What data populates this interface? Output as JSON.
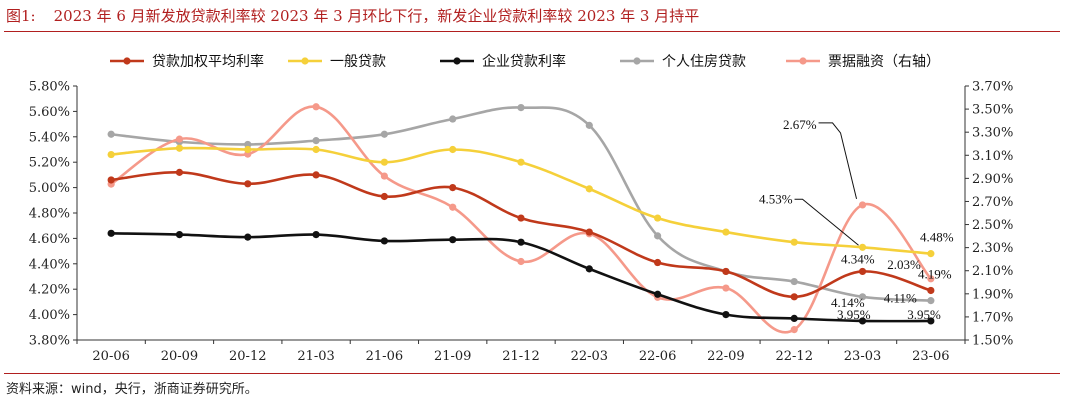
{
  "header": {
    "figure_label": "图1:",
    "title": "2023 年 6 月新发放贷款利率较 2023 年 3 月环比下行，新发企业贷款利率较 2023 年 3 月持平"
  },
  "footer": {
    "source": "资料来源：wind，央行，浙商证券研究所。"
  },
  "colors": {
    "title": "#b11f1f",
    "weighted": "#c0391b",
    "general": "#f5d03a",
    "corporate": "#111111",
    "mortgage": "#a6a6a6",
    "bill": "#f5998a"
  },
  "chart_data": {
    "type": "line",
    "title": "",
    "xlabel": "",
    "ylabel": "",
    "categories": [
      "20-06",
      "20-09",
      "20-12",
      "21-03",
      "21-06",
      "21-09",
      "21-12",
      "22-03",
      "22-06",
      "22-09",
      "22-12",
      "23-03",
      "23-06"
    ],
    "left_axis": {
      "ylim": [
        3.8,
        5.8
      ],
      "ticks": [
        "3.80%",
        "4.00%",
        "4.20%",
        "4.40%",
        "4.60%",
        "4.80%",
        "5.00%",
        "5.20%",
        "5.40%",
        "5.60%",
        "5.80%"
      ]
    },
    "right_axis": {
      "ylim": [
        1.5,
        3.7
      ],
      "ticks": [
        "1.50%",
        "1.70%",
        "1.90%",
        "2.10%",
        "2.30%",
        "2.50%",
        "2.70%",
        "2.90%",
        "3.10%",
        "3.30%",
        "3.50%",
        "3.70%"
      ]
    },
    "legend_position": "top",
    "series": [
      {
        "name": "贷款加权平均利率",
        "axis": "left",
        "color": "#c0391b",
        "values": [
          5.06,
          5.12,
          5.03,
          5.1,
          4.93,
          5.0,
          4.76,
          4.65,
          4.41,
          4.34,
          4.14,
          4.34,
          4.19
        ]
      },
      {
        "name": "一般贷款",
        "axis": "left",
        "color": "#f5d03a",
        "values": [
          5.26,
          5.31,
          5.3,
          5.3,
          5.2,
          5.3,
          5.2,
          4.99,
          4.76,
          4.65,
          4.57,
          4.53,
          4.48
        ]
      },
      {
        "name": "企业贷款利率",
        "axis": "left",
        "color": "#111111",
        "values": [
          4.64,
          4.63,
          4.61,
          4.63,
          4.58,
          4.59,
          4.57,
          4.36,
          4.16,
          4.0,
          3.97,
          3.95,
          3.95
        ]
      },
      {
        "name": "个人住房贷款",
        "axis": "left",
        "color": "#a6a6a6",
        "values": [
          5.42,
          5.36,
          5.34,
          5.37,
          5.42,
          5.54,
          5.63,
          5.49,
          4.62,
          4.34,
          4.26,
          4.14,
          4.11
        ]
      },
      {
        "name": "票据融资（右轴）",
        "axis": "right",
        "color": "#f5998a",
        "values": [
          2.85,
          3.24,
          3.11,
          3.52,
          2.92,
          2.65,
          2.18,
          2.42,
          1.87,
          1.95,
          1.59,
          2.67,
          2.03
        ]
      }
    ],
    "annotations": [
      {
        "text": "2.67%",
        "series": 4,
        "index": 11
      },
      {
        "text": "4.53%",
        "series": 1,
        "index": 11
      },
      {
        "text": "4.48%",
        "series": 1,
        "index": 12
      },
      {
        "text": "4.34%",
        "series": 0,
        "index": 11
      },
      {
        "text": "2.03%",
        "series": 4,
        "index": 12
      },
      {
        "text": "4.19%",
        "series": 0,
        "index": 12
      },
      {
        "text": "4.14%",
        "series": 3,
        "index": 11
      },
      {
        "text": "4.11%",
        "series": 3,
        "index": 12
      },
      {
        "text": "3.95%",
        "series": 2,
        "index": 11
      },
      {
        "text": "3.95%",
        "series": 2,
        "index": 12
      }
    ]
  }
}
